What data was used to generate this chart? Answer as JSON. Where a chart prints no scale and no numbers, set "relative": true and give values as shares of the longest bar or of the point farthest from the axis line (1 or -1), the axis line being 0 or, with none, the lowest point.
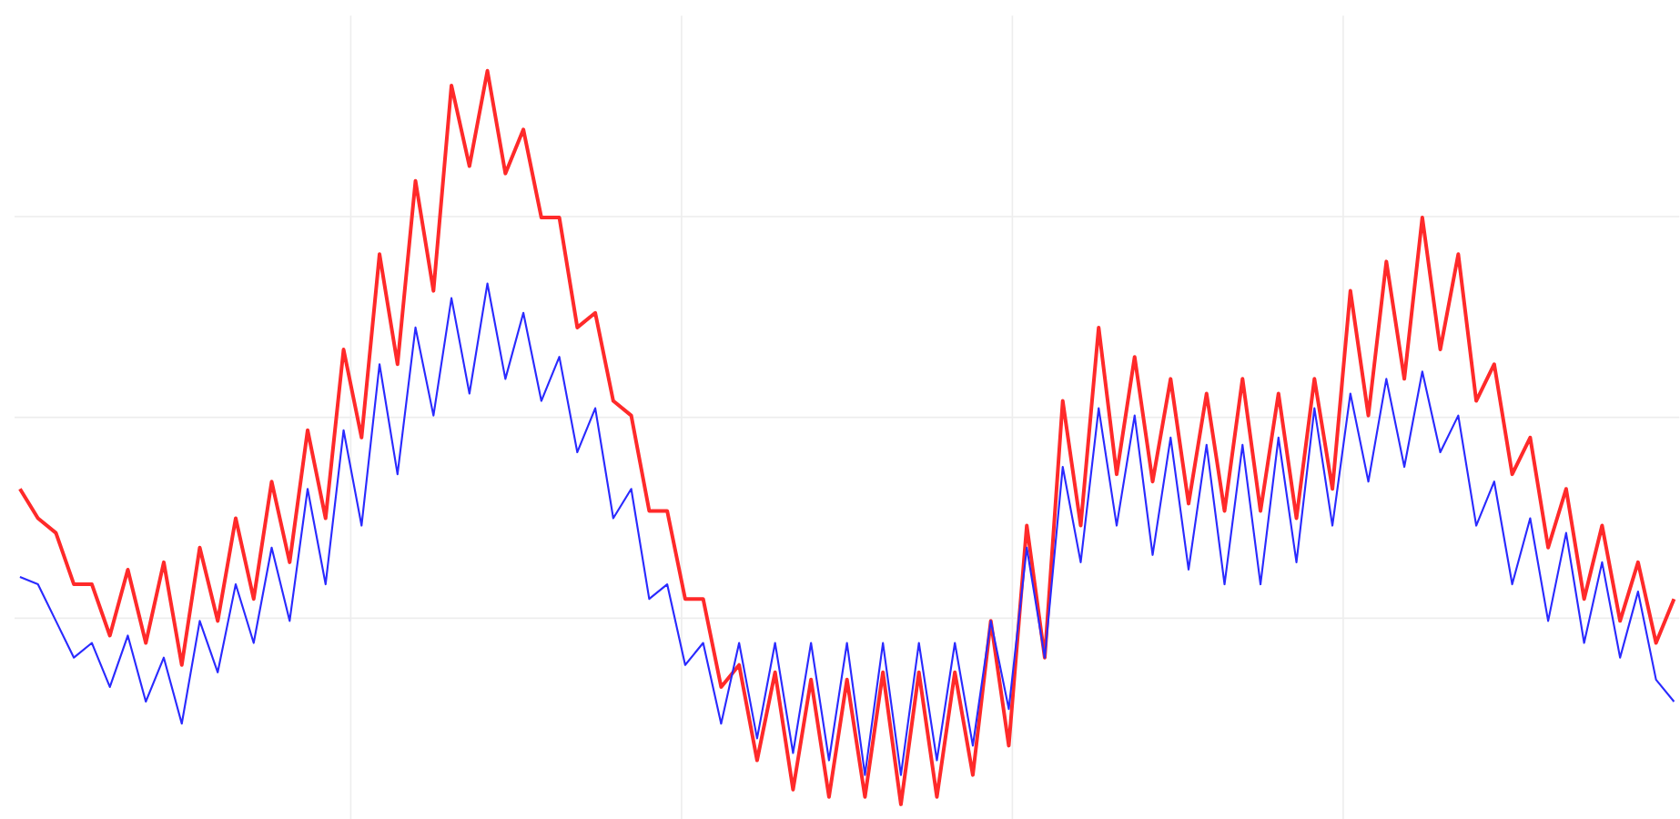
{
  "chart_data": {
    "type": "line",
    "relative": true,
    "grid": true,
    "categories": [
      null,
      null,
      null,
      null,
      null,
      null,
      null,
      null,
      null,
      null,
      null,
      null,
      null,
      null,
      null,
      null,
      null,
      null,
      null,
      null,
      null,
      null,
      null,
      null,
      null,
      null,
      null,
      null,
      null,
      null,
      null,
      null,
      null,
      null,
      null,
      null,
      null,
      null,
      null,
      null,
      null,
      null,
      null,
      null,
      null,
      null,
      null,
      null,
      null,
      null,
      null,
      null,
      null,
      null,
      null,
      null,
      null,
      null,
      null,
      null,
      null,
      null,
      null,
      null,
      null,
      null,
      null,
      null,
      null,
      null,
      null,
      null,
      null,
      null,
      null,
      null,
      null,
      null,
      null,
      null,
      null,
      null,
      null,
      null,
      null,
      null,
      null,
      null,
      null,
      null,
      null,
      null,
      null
    ],
    "series": [
      {
        "color": "#ff2a2a",
        "values": [
          0.43,
          0.39,
          0.37,
          0.3,
          0.3,
          0.23,
          0.32,
          0.22,
          0.33,
          0.19,
          0.35,
          0.25,
          0.39,
          0.28,
          0.44,
          0.33,
          0.51,
          0.39,
          0.62,
          0.5,
          0.75,
          0.6,
          0.85,
          0.7,
          0.98,
          0.87,
          1.0,
          0.86,
          0.92,
          0.8,
          0.8,
          0.65,
          0.67,
          0.55,
          0.53,
          0.4,
          0.4,
          0.28,
          0.28,
          0.16,
          0.19,
          0.06,
          0.18,
          0.02,
          0.17,
          0.01,
          0.17,
          0.01,
          0.18,
          0.0,
          0.18,
          0.01,
          0.18,
          0.04,
          0.25,
          0.08,
          0.38,
          0.2,
          0.55,
          0.38,
          0.65,
          0.45,
          0.61,
          0.44,
          0.58,
          0.41,
          0.56,
          0.4,
          0.58,
          0.4,
          0.56,
          0.39,
          0.58,
          0.43,
          0.7,
          0.53,
          0.74,
          0.58,
          0.8,
          0.62,
          0.75,
          0.55,
          0.6,
          0.45,
          0.5,
          0.35,
          0.43,
          0.28,
          0.38,
          0.25,
          0.33,
          0.22,
          0.28
        ]
      },
      {
        "color": "#2a2aff",
        "values": [
          0.31,
          0.3,
          0.25,
          0.2,
          0.22,
          0.16,
          0.23,
          0.14,
          0.2,
          0.11,
          0.25,
          0.18,
          0.3,
          0.22,
          0.35,
          0.25,
          0.43,
          0.3,
          0.51,
          0.38,
          0.6,
          0.45,
          0.65,
          0.53,
          0.69,
          0.56,
          0.71,
          0.58,
          0.67,
          0.55,
          0.61,
          0.48,
          0.54,
          0.39,
          0.43,
          0.28,
          0.3,
          0.19,
          0.22,
          0.11,
          0.22,
          0.09,
          0.22,
          0.07,
          0.22,
          0.06,
          0.22,
          0.04,
          0.22,
          0.04,
          0.22,
          0.06,
          0.22,
          0.08,
          0.25,
          0.13,
          0.35,
          0.2,
          0.46,
          0.33,
          0.54,
          0.38,
          0.53,
          0.34,
          0.5,
          0.32,
          0.49,
          0.3,
          0.49,
          0.3,
          0.5,
          0.33,
          0.54,
          0.38,
          0.56,
          0.44,
          0.58,
          0.46,
          0.59,
          0.48,
          0.53,
          0.38,
          0.44,
          0.3,
          0.39,
          0.25,
          0.37,
          0.22,
          0.33,
          0.2,
          0.29,
          0.17,
          0.14
        ]
      }
    ]
  }
}
